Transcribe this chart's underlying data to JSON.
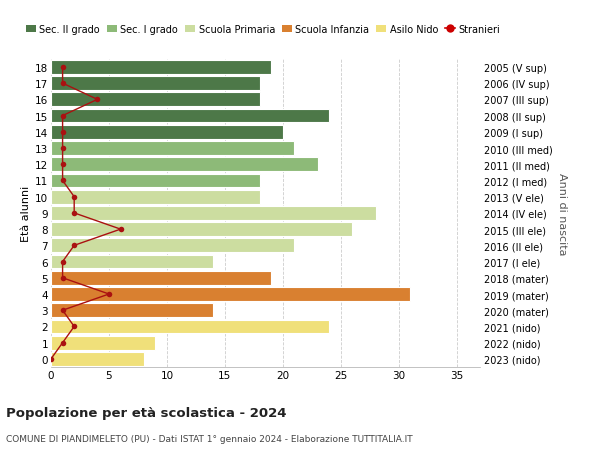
{
  "ages": [
    0,
    1,
    2,
    3,
    4,
    5,
    6,
    7,
    8,
    9,
    10,
    11,
    12,
    13,
    14,
    15,
    16,
    17,
    18
  ],
  "bar_values": [
    8,
    9,
    24,
    14,
    31,
    19,
    14,
    21,
    26,
    28,
    18,
    18,
    23,
    21,
    20,
    24,
    18,
    18,
    19
  ],
  "bar_colors": [
    "#f0e07a",
    "#f0e07a",
    "#f0e07a",
    "#d98030",
    "#d98030",
    "#d98030",
    "#ccdda0",
    "#ccdda0",
    "#ccdda0",
    "#ccdda0",
    "#ccdda0",
    "#8dba78",
    "#8dba78",
    "#8dba78",
    "#4d7848",
    "#4d7848",
    "#4d7848",
    "#4d7848",
    "#4d7848"
  ],
  "stranieri_values": [
    0,
    1,
    2,
    1,
    5,
    1,
    1,
    2,
    6,
    2,
    2,
    1,
    1,
    1,
    1,
    1,
    4,
    1,
    1
  ],
  "right_labels": [
    "2023 (nido)",
    "2022 (nido)",
    "2021 (nido)",
    "2020 (mater)",
    "2019 (mater)",
    "2018 (mater)",
    "2017 (I ele)",
    "2016 (II ele)",
    "2015 (III ele)",
    "2014 (IV ele)",
    "2013 (V ele)",
    "2012 (I med)",
    "2011 (II med)",
    "2010 (III med)",
    "2009 (I sup)",
    "2008 (II sup)",
    "2007 (III sup)",
    "2006 (IV sup)",
    "2005 (V sup)"
  ],
  "legend_labels": [
    "Sec. II grado",
    "Sec. I grado",
    "Scuola Primaria",
    "Scuola Infanzia",
    "Asilo Nido",
    "Stranieri"
  ],
  "legend_colors": [
    "#4d7848",
    "#8dba78",
    "#ccdda0",
    "#d98030",
    "#f0e07a",
    "#cc0000"
  ],
  "ylabel_left": "Età alunni",
  "ylabel_right": "Anni di nascita",
  "title": "Popolazione per età scolastica - 2024",
  "subtitle": "COMUNE DI PIANDIMELETO (PU) - Dati ISTAT 1° gennaio 2024 - Elaborazione TUTTITALIA.IT",
  "xlim": [
    0,
    37
  ],
  "xticks": [
    0,
    5,
    10,
    15,
    20,
    25,
    30,
    35
  ],
  "stranieri_color": "#aa1111",
  "background_color": "#ffffff",
  "grid_color": "#cccccc"
}
